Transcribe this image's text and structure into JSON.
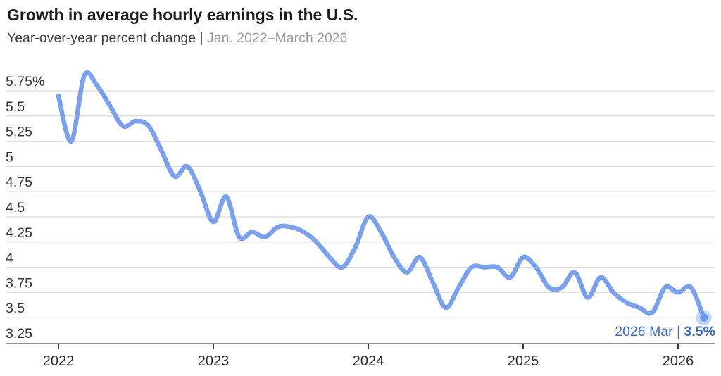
{
  "chart_data": {
    "type": "line",
    "title": "Growth in average hourly earnings in the U.S.",
    "subtitle_label": "Year-over-year percent change |",
    "subtitle_range": " Jan. 2022–March 2026",
    "x": [
      "Jan 2022",
      "Feb 2022",
      "Mar 2022",
      "Apr 2022",
      "May 2022",
      "Jun 2022",
      "Jul 2022",
      "Aug 2022",
      "Sep 2022",
      "Oct 2022",
      "Nov 2022",
      "Dec 2022",
      "Jan 2023",
      "Feb 2023",
      "Mar 2023",
      "Apr 2023",
      "May 2023",
      "Jun 2023",
      "Jul 2023",
      "Aug 2023",
      "Sep 2023",
      "Oct 2023",
      "Nov 2023",
      "Dec 2023",
      "Jan 2024",
      "Feb 2024",
      "Mar 2024",
      "Apr 2024",
      "May 2024",
      "Jun 2024",
      "Jul 2024",
      "Aug 2024",
      "Sep 2024",
      "Oct 2024",
      "Nov 2024",
      "Dec 2024",
      "Jan 2025",
      "Feb 2025",
      "Mar 2025",
      "Apr 2025",
      "May 2025",
      "Jun 2025",
      "Jul 2025",
      "Aug 2025",
      "Sep 2025",
      "Oct 2025",
      "Nov 2025",
      "Dec 2025",
      "Jan 2026",
      "Feb 2026",
      "Mar 2026"
    ],
    "series": [
      {
        "name": "Average hourly earnings, year-over-year percent change",
        "values": [
          5.7,
          5.25,
          5.9,
          5.8,
          5.6,
          5.4,
          5.45,
          5.4,
          5.15,
          4.9,
          5.0,
          4.75,
          4.45,
          4.7,
          4.3,
          4.35,
          4.3,
          4.4,
          4.4,
          4.35,
          4.25,
          4.1,
          4.0,
          4.2,
          4.5,
          4.35,
          4.1,
          3.95,
          4.1,
          3.85,
          3.6,
          3.8,
          4.0,
          4.0,
          4.0,
          3.9,
          4.1,
          4.0,
          3.8,
          3.8,
          3.95,
          3.7,
          3.9,
          3.75,
          3.65,
          3.6,
          3.55,
          3.8,
          3.75,
          3.8,
          3.5
        ]
      }
    ],
    "ylim": [
      3.25,
      5.75
    ],
    "ytick_values": [
      5.75,
      5.5,
      5.25,
      5.0,
      4.75,
      4.5,
      4.25,
      4.0,
      3.75,
      3.5,
      3.25
    ],
    "ytick_labels": [
      "5.75%",
      "5.5",
      "5.25",
      "5",
      "4.75",
      "4.5",
      "4.25",
      "4",
      "3.75",
      "3.5",
      "3.25"
    ],
    "xtick_labels": [
      "2022",
      "2023",
      "2024",
      "2025",
      "2026"
    ],
    "xtick_month_index": [
      0,
      12,
      24,
      36,
      48
    ],
    "grid": "horizontal",
    "legend": "none",
    "annotation": {
      "label": "2026 Mar |",
      "value": "3.5%"
    },
    "colors": {
      "line": "#7ba1ec",
      "end_dot": "#6b95ea",
      "end_dot_halo": "rgba(123,161,236,0.45)",
      "annotation": "#3b67cb",
      "gridline": "#dddddd",
      "axis_line": "#8f8f8f",
      "tick": "#3a3a3a",
      "axis_label": "#333333",
      "title": "#1d1d1d",
      "subtitle": "#3e3e3e",
      "subtitle_muted": "#9a9a9a"
    }
  }
}
